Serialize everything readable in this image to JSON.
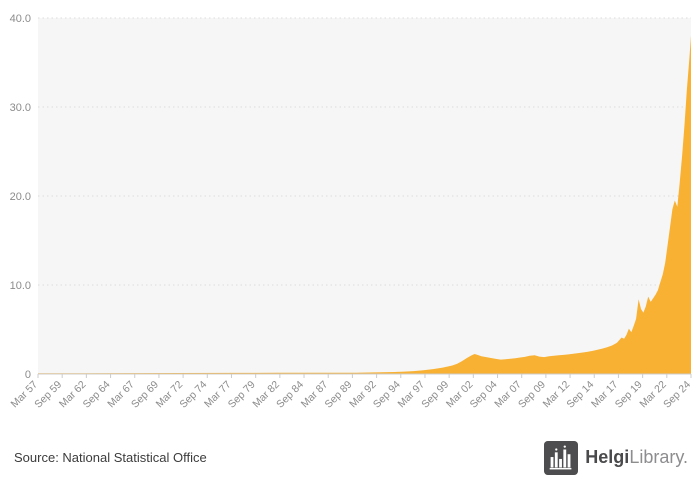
{
  "footer": {
    "source": "Source: National Statistical Office",
    "logo_bold": "Helgi",
    "logo_light": "Library."
  },
  "chart_data": {
    "type": "area",
    "title": "",
    "xlabel": "",
    "ylabel": "",
    "legend": "none",
    "grid": "horizontal dotted",
    "plot_bg": "#f6f6f6",
    "grid_color": "#dcdcdc",
    "axis_line_color": "#cccccc",
    "axis_text_color": "#8c8c8c",
    "ylim": [
      0,
      40
    ],
    "y_ticks": [
      "0",
      "10.0",
      "20.0",
      "30.0",
      "40.0"
    ],
    "y_tick_values": [
      0,
      10,
      20,
      30,
      40
    ],
    "xlim": [
      1957.17,
      2024.67
    ],
    "x_ticks": [
      "Mar 57",
      "Sep 59",
      "Mar 62",
      "Sep 64",
      "Mar 67",
      "Sep 69",
      "Mar 72",
      "Sep 74",
      "Mar 77",
      "Sep 79",
      "Mar 82",
      "Sep 84",
      "Mar 87",
      "Sep 89",
      "Mar 92",
      "Sep 94",
      "Mar 97",
      "Sep 99",
      "Mar 02",
      "Sep 04",
      "Mar 07",
      "Sep 09",
      "Mar 12",
      "Sep 14",
      "Mar 17",
      "Sep 19",
      "Mar 22",
      "Sep 24"
    ],
    "series": [
      {
        "name": "value",
        "color": "#F8B133",
        "points": [
          [
            1957.17,
            0.08
          ],
          [
            1962,
            0.09
          ],
          [
            1967,
            0.1
          ],
          [
            1972,
            0.11
          ],
          [
            1977,
            0.12
          ],
          [
            1982,
            0.13
          ],
          [
            1987,
            0.14
          ],
          [
            1990,
            0.15
          ],
          [
            1992,
            0.18
          ],
          [
            1994,
            0.22
          ],
          [
            1995,
            0.27
          ],
          [
            1996,
            0.33
          ],
          [
            1997,
            0.42
          ],
          [
            1998,
            0.55
          ],
          [
            1999,
            0.72
          ],
          [
            2000,
            0.95
          ],
          [
            2000.5,
            1.15
          ],
          [
            2001,
            1.45
          ],
          [
            2001.5,
            1.8
          ],
          [
            2002,
            2.1
          ],
          [
            2002.3,
            2.25
          ],
          [
            2002.6,
            2.15
          ],
          [
            2003,
            2.0
          ],
          [
            2003.5,
            1.9
          ],
          [
            2004,
            1.8
          ],
          [
            2004.5,
            1.7
          ],
          [
            2005,
            1.62
          ],
          [
            2005.5,
            1.66
          ],
          [
            2006,
            1.72
          ],
          [
            2006.5,
            1.78
          ],
          [
            2007,
            1.85
          ],
          [
            2007.5,
            1.92
          ],
          [
            2008,
            2.05
          ],
          [
            2008.5,
            2.1
          ],
          [
            2009,
            1.95
          ],
          [
            2009.5,
            1.9
          ],
          [
            2010,
            2.0
          ],
          [
            2010.5,
            2.05
          ],
          [
            2011,
            2.1
          ],
          [
            2011.5,
            2.15
          ],
          [
            2012,
            2.2
          ],
          [
            2012.5,
            2.28
          ],
          [
            2013,
            2.35
          ],
          [
            2013.5,
            2.42
          ],
          [
            2014,
            2.5
          ],
          [
            2014.5,
            2.6
          ],
          [
            2015,
            2.72
          ],
          [
            2015.5,
            2.85
          ],
          [
            2016,
            3.0
          ],
          [
            2016.5,
            3.2
          ],
          [
            2017,
            3.5
          ],
          [
            2017.25,
            3.8
          ],
          [
            2017.5,
            4.1
          ],
          [
            2017.75,
            3.95
          ],
          [
            2018,
            4.4
          ],
          [
            2018.25,
            5.1
          ],
          [
            2018.5,
            4.7
          ],
          [
            2018.75,
            5.4
          ],
          [
            2019,
            6.2
          ],
          [
            2019.25,
            8.4
          ],
          [
            2019.5,
            7.3
          ],
          [
            2019.75,
            6.9
          ],
          [
            2020,
            7.6
          ],
          [
            2020.25,
            8.7
          ],
          [
            2020.5,
            8.1
          ],
          [
            2020.75,
            8.5
          ],
          [
            2021,
            8.9
          ],
          [
            2021.25,
            9.4
          ],
          [
            2021.5,
            10.3
          ],
          [
            2021.75,
            11.2
          ],
          [
            2022,
            12.5
          ],
          [
            2022.25,
            14.5
          ],
          [
            2022.5,
            16.5
          ],
          [
            2022.75,
            18.5
          ],
          [
            2023,
            19.5
          ],
          [
            2023.25,
            18.8
          ],
          [
            2023.5,
            21.5
          ],
          [
            2023.75,
            24.5
          ],
          [
            2024,
            28.0
          ],
          [
            2024.25,
            32.0
          ],
          [
            2024.5,
            35.5
          ],
          [
            2024.67,
            38.0
          ]
        ]
      }
    ]
  }
}
